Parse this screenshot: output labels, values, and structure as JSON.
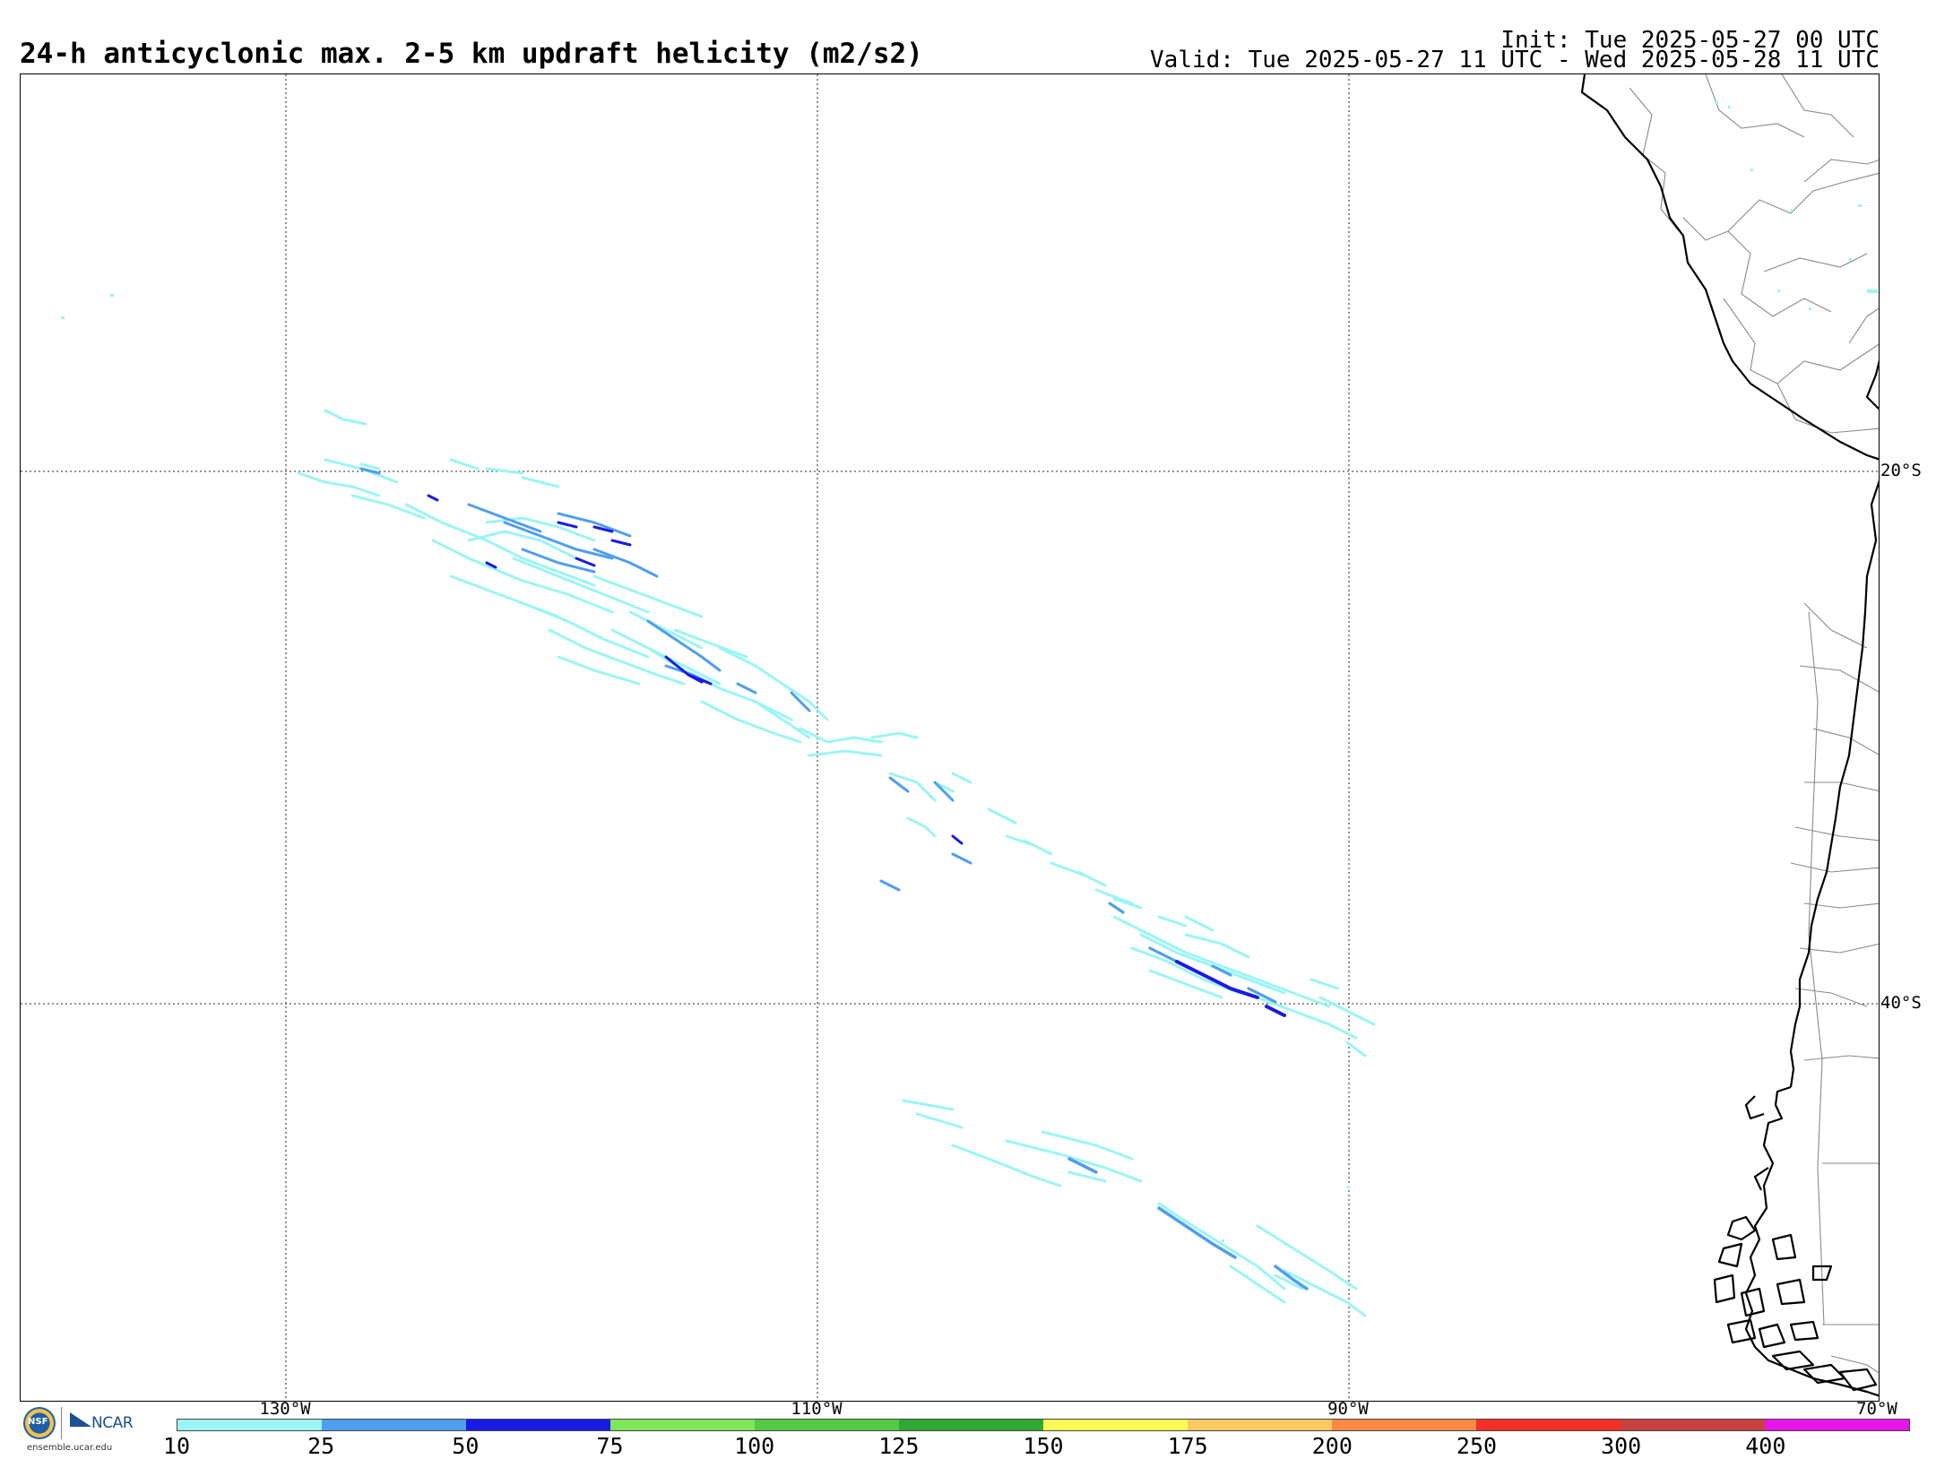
{
  "header": {
    "title": "24-h anticyclonic max. 2-5 km updraft helicity (m2/s2)",
    "init": "Init: Tue 2025-05-27 00 UTC",
    "valid": "Valid: Tue 2025-05-27 11 UTC - Wed 2025-05-28 11 UTC"
  },
  "map": {
    "lon_range": [
      -135,
      -70
    ],
    "lat_range": [
      -5,
      -55
    ],
    "grid_lats": [
      {
        "value": -20,
        "label": "20°S"
      },
      {
        "value": -40,
        "label": "40°S"
      }
    ],
    "grid_lons": [
      {
        "value": -130,
        "label": "130°W"
      },
      {
        "value": -110,
        "label": "110°W"
      },
      {
        "value": -90,
        "label": "90°W"
      },
      {
        "value": -70,
        "label": "70°W"
      }
    ]
  },
  "colorbar": {
    "labels": [
      "10",
      "25",
      "50",
      "75",
      "100",
      "125",
      "150",
      "175",
      "200",
      "250",
      "300",
      "400"
    ],
    "colors": [
      "#9bf5f5",
      "#4f9ef0",
      "#1a1ae6",
      "#7ee65a",
      "#55c945",
      "#2ea832",
      "#fbfb55",
      "#fcca62",
      "#fc8a45",
      "#f53028",
      "#c94040",
      "#e815e8"
    ]
  },
  "logos": {
    "nsf": "NSF",
    "ncar": "NCAR",
    "url": "ensemble.ucar.edu"
  }
}
